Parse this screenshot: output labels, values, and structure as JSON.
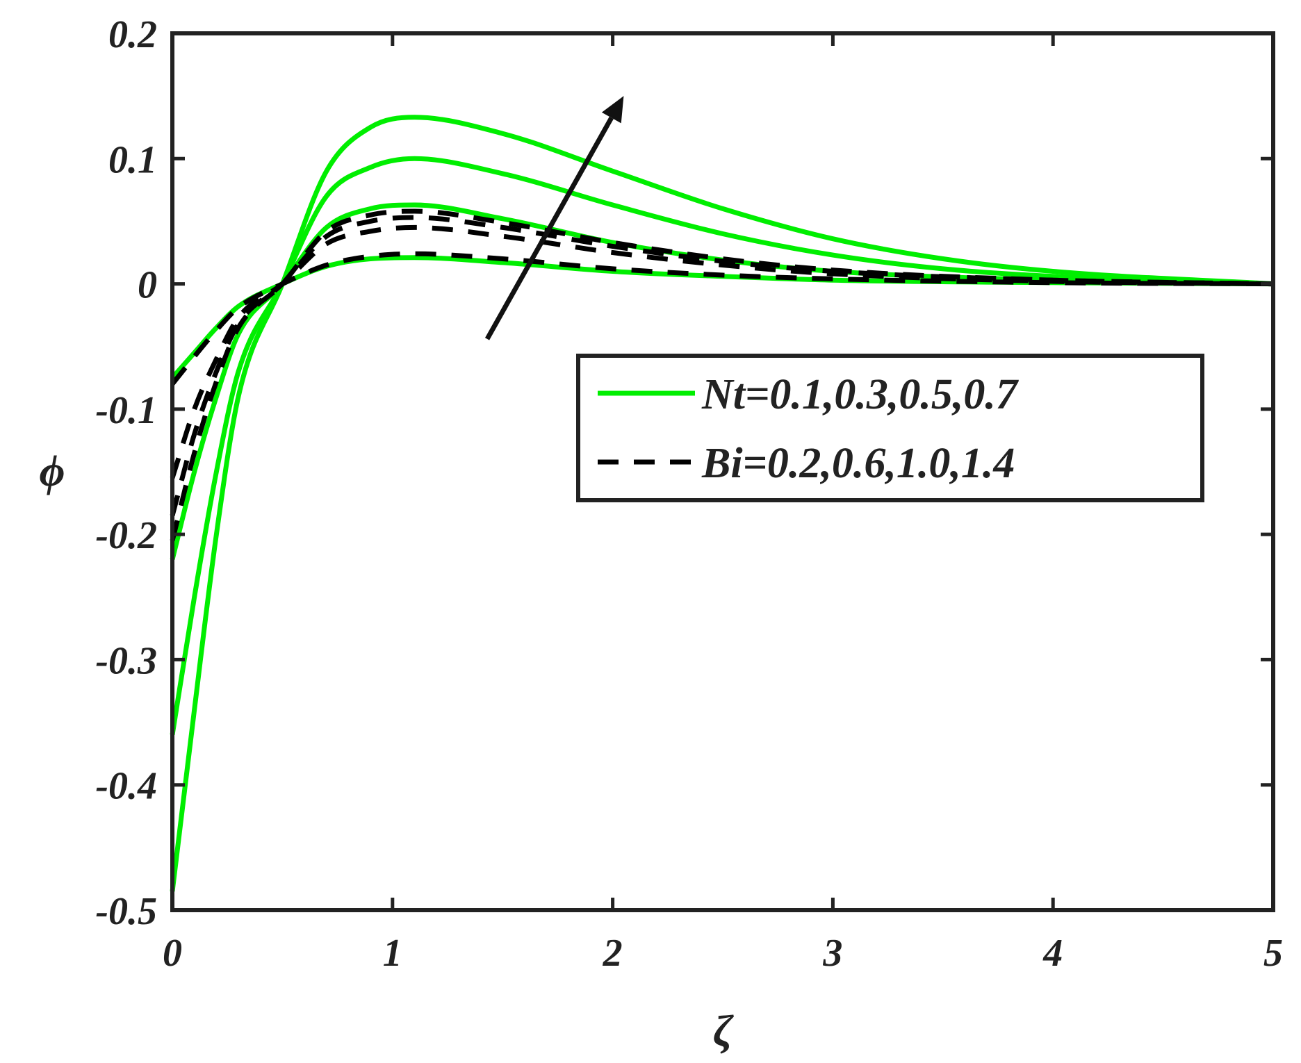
{
  "colors": {
    "nt_series": "#00ee00",
    "bi_series": "#000000",
    "axis": "#222222",
    "background": "#ffffff"
  },
  "chart_data": {
    "type": "line",
    "title": "",
    "xlabel": "ζ",
    "ylabel": "ϕ",
    "xlim": [
      0,
      5
    ],
    "ylim": [
      -0.5,
      0.2
    ],
    "xticks": [
      "0",
      "1",
      "2",
      "3",
      "4",
      "5"
    ],
    "yticks": [
      "0.2",
      "0.1",
      "0",
      "-0.1",
      "-0.2",
      "-0.3",
      "-0.4",
      "-0.5"
    ],
    "grid": false,
    "legend_placement": "center-right",
    "legend": [
      {
        "label": "Nt=0.1,0.3,0.5,0.7",
        "style": "solid",
        "color": "#00ee00"
      },
      {
        "label": "Bi=0.2,0.6,1.0,1.4",
        "style": "dashed",
        "color": "#000000"
      }
    ],
    "annotations": [
      {
        "type": "arrow",
        "from": [
          1.43,
          -0.044
        ],
        "to": [
          2.05,
          0.15
        ],
        "meaning": "increasing parameter"
      }
    ],
    "series": [
      {
        "group": "Nt",
        "style": "solid",
        "x": [
          0,
          0.1,
          0.2,
          0.3,
          0.5,
          0.7,
          0.9,
          1.1,
          1.5,
          2.0,
          2.5,
          3.0,
          4.0,
          5.0
        ],
        "y": [
          -0.075,
          -0.055,
          -0.035,
          -0.018,
          0.0,
          0.014,
          0.02,
          0.021,
          0.017,
          0.01,
          0.006,
          0.003,
          0.001,
          0.0
        ]
      },
      {
        "group": "Nt",
        "style": "solid",
        "x": [
          0,
          0.1,
          0.2,
          0.3,
          0.5,
          0.7,
          0.9,
          1.1,
          1.5,
          2.0,
          2.5,
          3.0,
          4.0,
          5.0
        ],
        "y": [
          -0.22,
          -0.15,
          -0.09,
          -0.04,
          0.0,
          0.045,
          0.06,
          0.063,
          0.052,
          0.033,
          0.019,
          0.01,
          0.003,
          0.0
        ]
      },
      {
        "group": "Nt",
        "style": "solid",
        "x": [
          0,
          0.1,
          0.2,
          0.3,
          0.5,
          0.7,
          0.9,
          1.1,
          1.5,
          2.0,
          2.5,
          3.0,
          3.5,
          4.0,
          5.0
        ],
        "y": [
          -0.36,
          -0.25,
          -0.15,
          -0.07,
          0.0,
          0.07,
          0.093,
          0.1,
          0.088,
          0.063,
          0.04,
          0.023,
          0.012,
          0.006,
          0.0
        ]
      },
      {
        "group": "Nt",
        "style": "solid",
        "x": [
          0,
          0.1,
          0.2,
          0.3,
          0.5,
          0.7,
          0.9,
          1.1,
          1.5,
          2.0,
          2.5,
          3.0,
          3.5,
          4.0,
          5.0
        ],
        "y": [
          -0.485,
          -0.34,
          -0.2,
          -0.09,
          0.0,
          0.09,
          0.125,
          0.133,
          0.12,
          0.09,
          0.06,
          0.036,
          0.02,
          0.01,
          0.0
        ]
      },
      {
        "group": "Bi",
        "style": "dashed",
        "x": [
          0,
          0.1,
          0.2,
          0.3,
          0.5,
          0.7,
          0.9,
          1.1,
          1.5,
          2.0,
          2.5,
          3.0,
          4.0,
          5.0
        ],
        "y": [
          -0.08,
          -0.058,
          -0.037,
          -0.019,
          0.0,
          0.015,
          0.022,
          0.024,
          0.02,
          0.012,
          0.007,
          0.004,
          0.001,
          0.0
        ]
      },
      {
        "group": "Bi",
        "style": "dashed",
        "x": [
          0,
          0.1,
          0.2,
          0.3,
          0.5,
          0.7,
          0.9,
          1.1,
          1.5,
          2.0,
          2.5,
          3.0,
          4.0,
          5.0
        ],
        "y": [
          -0.155,
          -0.1,
          -0.06,
          -0.027,
          0.0,
          0.032,
          0.042,
          0.045,
          0.038,
          0.025,
          0.015,
          0.008,
          0.002,
          0.0
        ]
      },
      {
        "group": "Bi",
        "style": "dashed",
        "x": [
          0,
          0.1,
          0.2,
          0.3,
          0.5,
          0.7,
          0.9,
          1.1,
          1.5,
          2.0,
          2.5,
          3.0,
          4.0,
          5.0
        ],
        "y": [
          -0.185,
          -0.12,
          -0.07,
          -0.032,
          0.0,
          0.038,
          0.05,
          0.053,
          0.045,
          0.03,
          0.018,
          0.01,
          0.003,
          0.0
        ]
      },
      {
        "group": "Bi",
        "style": "dashed",
        "x": [
          0,
          0.1,
          0.2,
          0.3,
          0.5,
          0.7,
          0.9,
          1.1,
          1.5,
          2.0,
          2.5,
          3.0,
          4.0,
          5.0
        ],
        "y": [
          -0.205,
          -0.135,
          -0.078,
          -0.035,
          0.0,
          0.042,
          0.055,
          0.058,
          0.049,
          0.033,
          0.02,
          0.011,
          0.003,
          0.0
        ]
      }
    ]
  }
}
